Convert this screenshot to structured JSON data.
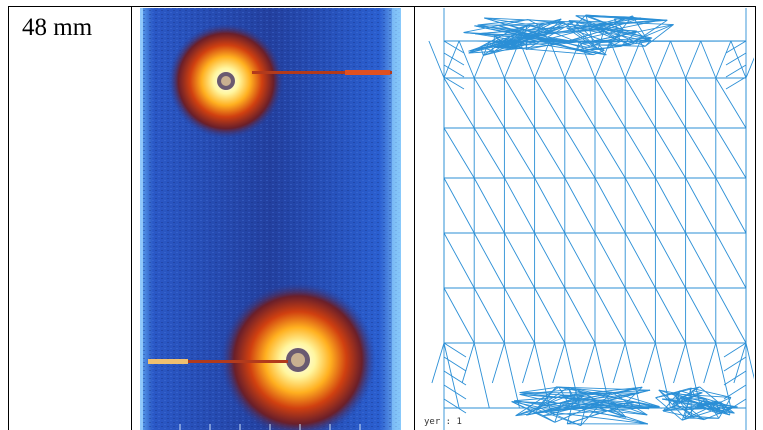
{
  "table": {
    "row_label": "48 mm"
  },
  "thermal_panel": {
    "icon": "thermal-image-icon"
  },
  "mesh_panel": {
    "caption": "yer :  1",
    "line_color": "#2b8fd6"
  }
}
